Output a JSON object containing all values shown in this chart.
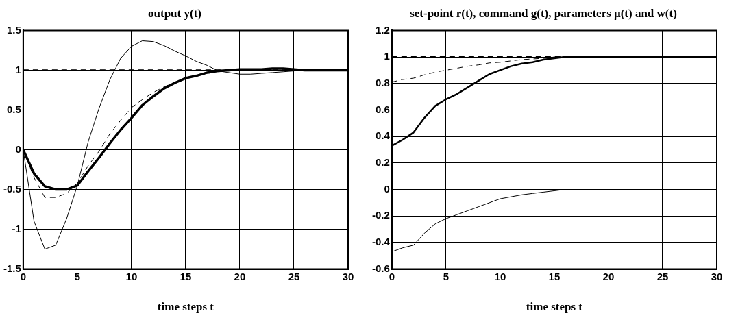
{
  "chart_data": [
    {
      "type": "line",
      "title": "output y(t)",
      "xlabel": "time steps t",
      "x": [
        0,
        1,
        2,
        3,
        4,
        5,
        6,
        7,
        8,
        9,
        10,
        11,
        12,
        13,
        14,
        15,
        16,
        17,
        18,
        19,
        20,
        21,
        22,
        23,
        24,
        25,
        26,
        27,
        28,
        29,
        30
      ],
      "xlim": [
        0,
        30
      ],
      "xticks": [
        0,
        5,
        10,
        15,
        20,
        25,
        30
      ],
      "ylim": [
        -1.5,
        1.5
      ],
      "yticks": [
        -1.5,
        -1,
        -0.5,
        0,
        0.5,
        1,
        1.5
      ],
      "grid": true,
      "legend": false,
      "marker": "none",
      "series": [
        {
          "color": "#000000",
          "line_style": "dashed",
          "values": [
            1,
            1,
            1,
            1,
            1,
            1,
            1,
            1,
            1,
            1,
            1,
            1,
            1,
            1,
            1,
            1,
            1,
            1,
            1,
            1,
            1,
            1,
            1,
            1,
            1,
            1,
            1,
            1,
            1,
            1,
            1
          ]
        },
        {
          "color": "#000000",
          "line_style": "solid",
          "values": [
            0,
            -0.9,
            -1.25,
            -1.2,
            -0.87,
            -0.45,
            0.1,
            0.52,
            0.88,
            1.15,
            1.3,
            1.37,
            1.36,
            1.31,
            1.24,
            1.18,
            1.11,
            1.06,
            0.99,
            0.97,
            0.95,
            0.95,
            0.96,
            0.97,
            0.98,
            0.99,
            1,
            1,
            1,
            1,
            1
          ]
        },
        {
          "color": "#000000",
          "line_style": "dashed",
          "values": [
            0,
            -0.35,
            -0.6,
            -0.6,
            -0.55,
            -0.42,
            -0.2,
            -0.02,
            0.2,
            0.37,
            0.53,
            0.63,
            0.72,
            0.79,
            0.85,
            0.9,
            0.93,
            0.96,
            0.98,
            0.99,
            1,
            1,
            1,
            1,
            1,
            1,
            1,
            1,
            1,
            1,
            1
          ]
        },
        {
          "color": "#000000",
          "line_style": "solid",
          "values": [
            0,
            -0.3,
            -0.46,
            -0.5,
            -0.5,
            -0.45,
            -0.27,
            -0.1,
            0.08,
            0.25,
            0.4,
            0.56,
            0.67,
            0.77,
            0.84,
            0.9,
            0.93,
            0.97,
            0.99,
            1,
            1.01,
            1.01,
            1.01,
            1.02,
            1.02,
            1.01,
            1,
            1,
            1,
            1,
            1
          ]
        }
      ]
    },
    {
      "type": "line",
      "title": "set-point r(t), command g(t), parameters μ(t) and w(t)",
      "xlabel": "time steps t",
      "x": [
        0,
        1,
        2,
        3,
        4,
        5,
        6,
        7,
        8,
        9,
        10,
        11,
        12,
        13,
        14,
        15,
        16,
        17,
        18,
        19,
        20,
        21,
        22,
        23,
        24,
        25,
        26,
        27,
        28,
        29,
        30
      ],
      "xlim": [
        0,
        30
      ],
      "xticks": [
        0,
        5,
        10,
        15,
        20,
        25,
        30
      ],
      "ylim": [
        -0.6,
        1.2
      ],
      "yticks": [
        -0.6,
        -0.4,
        -0.2,
        0,
        0.2,
        0.4,
        0.6,
        0.8,
        1,
        1.2
      ],
      "grid": true,
      "legend": false,
      "marker": "none",
      "series": [
        {
          "color": "#000000",
          "line_style": "dashed",
          "values": [
            1,
            1,
            1,
            1,
            1,
            1,
            1,
            1,
            1,
            1,
            1,
            1,
            1,
            1,
            1,
            1,
            1,
            1,
            1,
            1,
            1,
            1,
            1,
            1,
            1,
            1,
            1,
            1,
            1,
            1,
            1
          ]
        },
        {
          "color": "#000000",
          "line_style": "dashed",
          "values": [
            0.81,
            0.83,
            0.84,
            0.865,
            0.885,
            0.9,
            0.915,
            0.93,
            0.94,
            0.955,
            0.96,
            0.97,
            0.98,
            0.985,
            0.99,
            1,
            1,
            1,
            1,
            1,
            1,
            1,
            1,
            1,
            1,
            1,
            1,
            1,
            1,
            1,
            1
          ]
        },
        {
          "color": "#000000",
          "line_style": "solid",
          "values": [
            0.33,
            0.375,
            0.43,
            0.54,
            0.63,
            0.68,
            0.72,
            0.77,
            0.82,
            0.87,
            0.9,
            0.93,
            0.95,
            0.96,
            0.98,
            0.99,
            1,
            1,
            1,
            1,
            1,
            1,
            1,
            1,
            1,
            1,
            1,
            1,
            1,
            1,
            1
          ]
        },
        {
          "color": "#000000",
          "line_style": "solid",
          "values": [
            -0.47,
            -0.44,
            -0.42,
            -0.33,
            -0.26,
            -0.22,
            -0.19,
            -0.16,
            -0.13,
            -0.1,
            -0.07,
            -0.055,
            -0.04,
            -0.03,
            -0.02,
            -0.01,
            0,
            0,
            0,
            0,
            0,
            0,
            0,
            0,
            0,
            0,
            0,
            0,
            0,
            0,
            0
          ]
        }
      ]
    }
  ]
}
